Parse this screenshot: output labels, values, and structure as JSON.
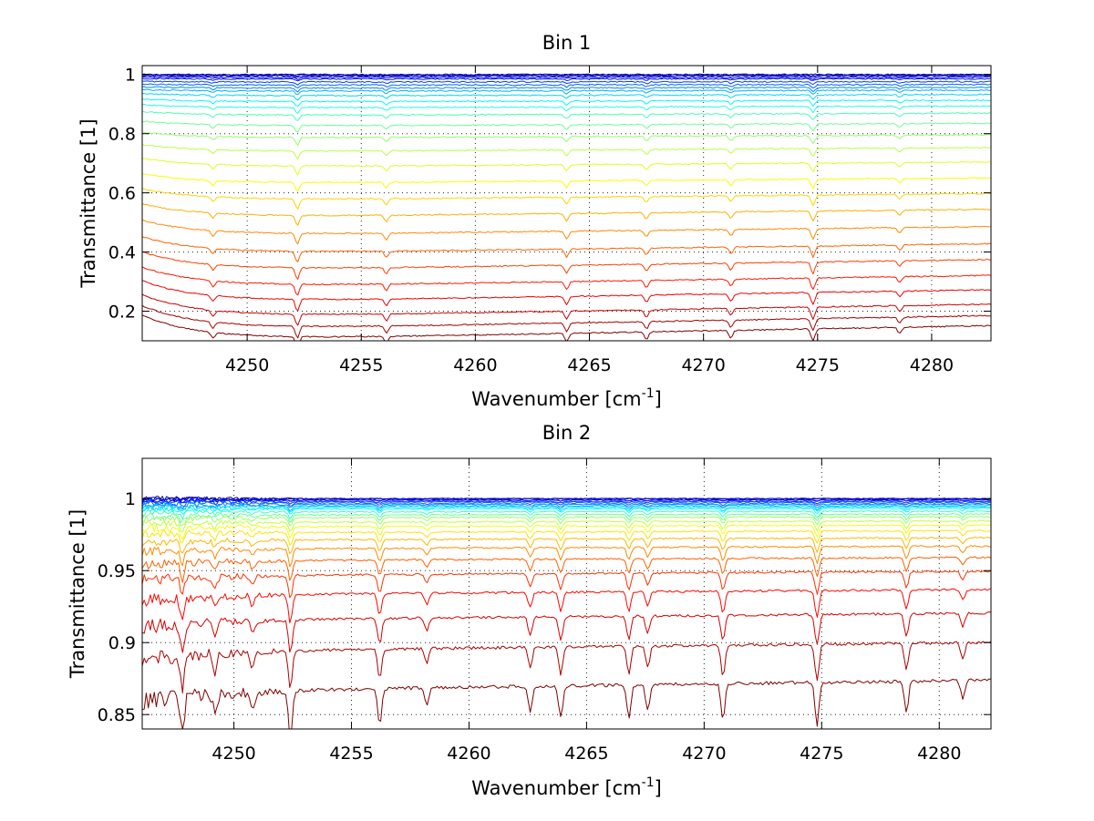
{
  "chart_data": [
    {
      "type": "line",
      "title": "Bin 1",
      "xlabel": "Wavenumber [cm",
      "xlabel_sup": "-1",
      "xlabel_end": "]",
      "ylabel": "Transmittance [1]",
      "xlim": [
        4245.4,
        4282.6
      ],
      "ylim": [
        0.1,
        1.03
      ],
      "xticks": [
        4250,
        4255,
        4260,
        4265,
        4270,
        4275,
        4280
      ],
      "xtick_labels": [
        "4250",
        "4255",
        "4260",
        "4265",
        "4270",
        "4275",
        "4280"
      ],
      "yticks": [
        0.2,
        0.4,
        0.6,
        0.8,
        1.0
      ],
      "ytick_labels": [
        "0.2",
        "0.4",
        "0.6",
        "0.8",
        "1"
      ],
      "grid": true,
      "colormap": [
        "#00008f",
        "#0000ff",
        "#0080ff",
        "#00ffff",
        "#80ff80",
        "#ffff00",
        "#ff8000",
        "#ff0000",
        "#800000"
      ],
      "absorption_lines": [
        {
          "x": 4248.5,
          "depth": 0.5
        },
        {
          "x": 4252.2,
          "depth": 1.0
        },
        {
          "x": 4256.1,
          "depth": 0.6
        },
        {
          "x": 4264.0,
          "depth": 0.7
        },
        {
          "x": 4267.5,
          "depth": 0.6
        },
        {
          "x": 4271.2,
          "depth": 0.6
        },
        {
          "x": 4274.8,
          "depth": 1.0
        },
        {
          "x": 4278.6,
          "depth": 0.5
        }
      ],
      "series_levels": [
        1.0,
        0.998,
        0.995,
        0.99,
        0.985,
        0.975,
        0.965,
        0.955,
        0.945,
        0.93,
        0.91,
        0.89,
        0.865,
        0.83,
        0.79,
        0.745,
        0.695,
        0.64,
        0.585,
        0.53,
        0.47,
        0.41,
        0.355,
        0.3,
        0.25,
        0.2,
        0.16,
        0.125
      ]
    },
    {
      "type": "line",
      "title": "Bin 2",
      "xlabel": "Wavenumber [cm",
      "xlabel_sup": "-1",
      "xlabel_end": "]",
      "ylabel": "Transmittance [1]",
      "xlim": [
        4246.1,
        4282.2
      ],
      "ylim": [
        0.84,
        1.028
      ],
      "xticks": [
        4250,
        4255,
        4260,
        4265,
        4270,
        4275,
        4280
      ],
      "xtick_labels": [
        "4250",
        "4255",
        "4260",
        "4265",
        "4270",
        "4275",
        "4280"
      ],
      "yticks": [
        0.85,
        0.9,
        0.95,
        1.0
      ],
      "ytick_labels": [
        "0.85",
        "0.9",
        "0.95",
        "1"
      ],
      "grid": true,
      "colormap": [
        "#00008f",
        "#0000ff",
        "#0080ff",
        "#00ffff",
        "#80ff80",
        "#ffff00",
        "#ff8000",
        "#ff0000",
        "#800000"
      ],
      "absorption_lines": [
        {
          "x": 4247.8,
          "depth": 1.1
        },
        {
          "x": 4249.2,
          "depth": 0.6
        },
        {
          "x": 4250.8,
          "depth": 0.5
        },
        {
          "x": 4252.4,
          "depth": 1.3
        },
        {
          "x": 4256.2,
          "depth": 1.0
        },
        {
          "x": 4258.2,
          "depth": 0.5
        },
        {
          "x": 4262.6,
          "depth": 0.7
        },
        {
          "x": 4263.9,
          "depth": 0.9
        },
        {
          "x": 4266.8,
          "depth": 0.9
        },
        {
          "x": 4267.6,
          "depth": 0.7
        },
        {
          "x": 4270.8,
          "depth": 1.0
        },
        {
          "x": 4274.8,
          "depth": 1.2
        },
        {
          "x": 4278.6,
          "depth": 0.9
        },
        {
          "x": 4281.0,
          "depth": 0.5
        }
      ],
      "series_levels": [
        1.0,
        1.0,
        0.999,
        0.999,
        0.998,
        0.997,
        0.996,
        0.995,
        0.994,
        0.993,
        0.991,
        0.989,
        0.987,
        0.984,
        0.981,
        0.977,
        0.972,
        0.966,
        0.958,
        0.948,
        0.935,
        0.918,
        0.897,
        0.87
      ]
    }
  ]
}
